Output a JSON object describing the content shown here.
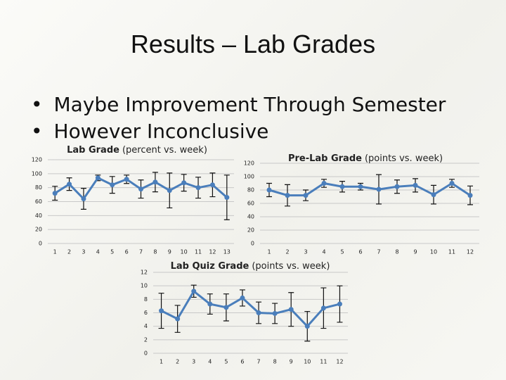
{
  "title": "Results – Lab Grades",
  "bullets": [
    "Maybe Improvement Through Semester",
    "However Inconclusive"
  ],
  "chart_data": [
    {
      "type": "line",
      "title": "Lab Grade",
      "subtitle": "(percent vs. week)",
      "categories": [
        "1",
        "2",
        "3",
        "4",
        "5",
        "6",
        "7",
        "8",
        "9",
        "10",
        "11",
        "12",
        "13"
      ],
      "values": [
        72,
        85,
        64,
        94,
        84,
        92,
        78,
        88,
        76,
        87,
        80,
        84,
        66
      ],
      "errors": [
        10,
        9,
        15,
        4,
        12,
        6,
        13,
        14,
        25,
        12,
        15,
        17,
        32
      ],
      "color": "#4a7ebb",
      "ylim": [
        0,
        120
      ],
      "yticks": [
        0,
        20,
        40,
        60,
        80,
        100,
        120
      ],
      "grid": true
    },
    {
      "type": "line",
      "title": "Pre-Lab Grade",
      "subtitle": "(points vs. week)",
      "categories": [
        "1",
        "2",
        "3",
        "4",
        "5",
        "6",
        "7",
        "8",
        "9",
        "10",
        "11",
        "12"
      ],
      "values": [
        80,
        72,
        72,
        90,
        85,
        85,
        81,
        85,
        87,
        73,
        90,
        72
      ],
      "errors": [
        10,
        16,
        8,
        6,
        8,
        5,
        22,
        10,
        10,
        14,
        6,
        14
      ],
      "color": "#4a7ebb",
      "ylim": [
        0,
        120
      ],
      "yticks": [
        0,
        20,
        40,
        60,
        80,
        100,
        120
      ],
      "grid": true
    },
    {
      "type": "line",
      "title": "Lab Quiz Grade",
      "subtitle": "(points vs. week)",
      "categories": [
        "1",
        "2",
        "3",
        "4",
        "5",
        "6",
        "7",
        "8",
        "9",
        "10",
        "11",
        "12"
      ],
      "values": [
        6.3,
        5.1,
        9.2,
        7.3,
        6.8,
        8.2,
        6.0,
        5.9,
        6.5,
        4.0,
        6.7,
        7.3
      ],
      "errors": [
        2.6,
        2.0,
        0.9,
        1.5,
        2.0,
        1.2,
        1.6,
        1.5,
        2.5,
        2.2,
        3.0,
        2.7
      ],
      "color": "#4a7ebb",
      "ylim": [
        0,
        12
      ],
      "yticks": [
        0,
        2,
        4,
        6,
        8,
        10,
        12
      ],
      "grid": true
    }
  ]
}
